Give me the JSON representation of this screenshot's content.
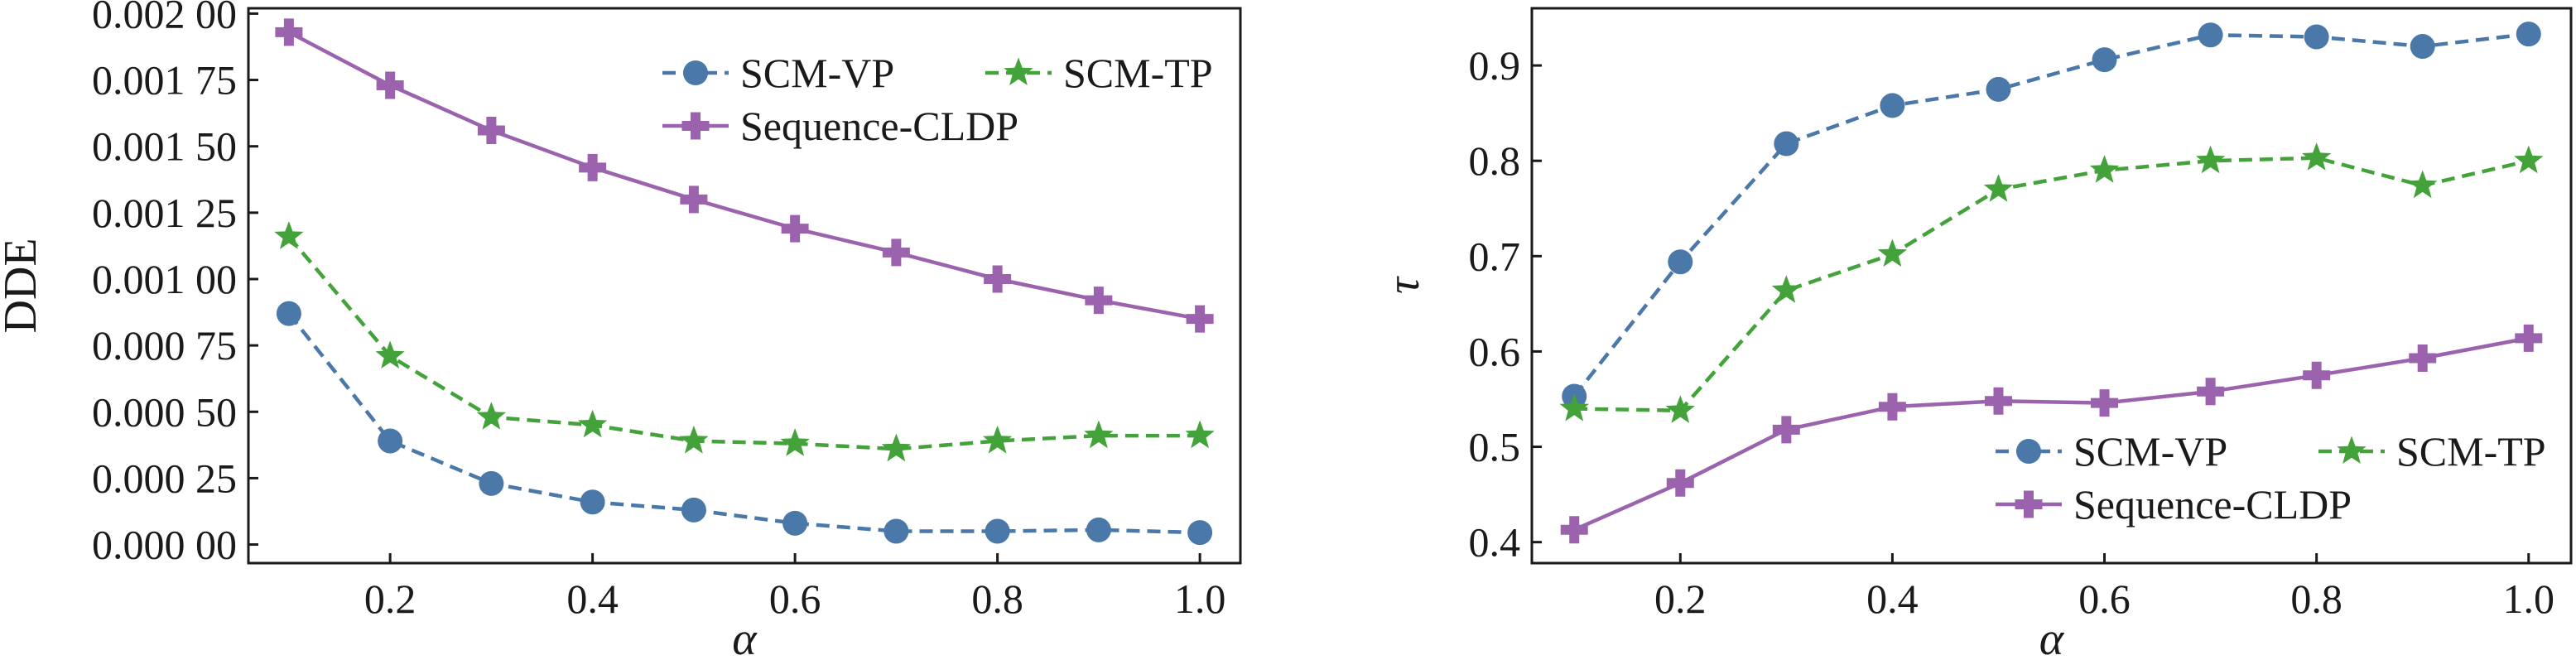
{
  "chart_data": [
    {
      "type": "line",
      "title": "",
      "xlabel": "α",
      "ylabel": "DDE",
      "xlim": [
        0.06,
        1.04
      ],
      "ylim": [
        -7e-05,
        0.00202
      ],
      "xticks": [
        0.2,
        0.4,
        0.6,
        0.8,
        1.0
      ],
      "xtick_labels": [
        "0.2",
        "0.4",
        "0.6",
        "0.8",
        "1.0"
      ],
      "yticks": [
        0,
        0.00025,
        0.0005,
        0.00075,
        0.001,
        0.00125,
        0.0015,
        0.00175,
        0.002
      ],
      "ytick_labels": [
        "0.000 00",
        "0.000 25",
        "0.000 50",
        "0.000 75",
        "0.001 00",
        "0.001 25",
        "0.001 50",
        "0.001 75",
        "0.002 00"
      ],
      "grid": false,
      "legend_position": "top-right",
      "legend_rows": [
        [
          "SCM-VP",
          "SCM-TP"
        ],
        [
          "Sequence-CLDP"
        ]
      ],
      "x": [
        0.1,
        0.2,
        0.3,
        0.4,
        0.5,
        0.6,
        0.7,
        0.8,
        0.9,
        1.0
      ],
      "series": [
        {
          "name": "SCM-VP",
          "color": "#4a78a8",
          "marker": "circle",
          "line": "dashed",
          "values": [
            0.00087,
            0.00039,
            0.00023,
            0.00016,
            0.00013,
            8e-05,
            5e-05,
            5e-05,
            5.5e-05,
            4.5e-05
          ]
        },
        {
          "name": "SCM-TP",
          "color": "#44a23a",
          "marker": "star",
          "line": "dashed",
          "values": [
            0.00116,
            0.00071,
            0.00048,
            0.00045,
            0.00039,
            0.00038,
            0.00036,
            0.00039,
            0.00041,
            0.00041
          ]
        },
        {
          "name": "Sequence-CLDP",
          "color": "#9b63ad",
          "marker": "plus",
          "line": "solid",
          "values": [
            0.00193,
            0.00173,
            0.00156,
            0.00142,
            0.0013,
            0.00119,
            0.0011,
            0.001,
            0.00092,
            0.00085
          ]
        }
      ]
    },
    {
      "type": "line",
      "title": "",
      "xlabel": "α",
      "ylabel": "τ",
      "xlim": [
        0.06,
        1.04
      ],
      "ylim": [
        0.378,
        0.96
      ],
      "xticks": [
        0.2,
        0.4,
        0.6,
        0.8,
        1.0
      ],
      "xtick_labels": [
        "0.2",
        "0.4",
        "0.6",
        "0.8",
        "1.0"
      ],
      "yticks": [
        0.4,
        0.5,
        0.6,
        0.7,
        0.8,
        0.9
      ],
      "ytick_labels": [
        "0.4",
        "0.5",
        "0.6",
        "0.7",
        "0.8",
        "0.9"
      ],
      "grid": false,
      "legend_position": "bottom-right",
      "legend_rows": [
        [
          "SCM-VP",
          "SCM-TP"
        ],
        [
          "Sequence-CLDP"
        ]
      ],
      "x": [
        0.1,
        0.2,
        0.3,
        0.4,
        0.5,
        0.6,
        0.7,
        0.8,
        0.9,
        1.0
      ],
      "series": [
        {
          "name": "SCM-VP",
          "color": "#4a78a8",
          "marker": "circle",
          "line": "dashed",
          "values": [
            0.553,
            0.694,
            0.818,
            0.858,
            0.875,
            0.906,
            0.932,
            0.93,
            0.92,
            0.933
          ]
        },
        {
          "name": "SCM-TP",
          "color": "#44a23a",
          "marker": "star",
          "line": "dashed",
          "values": [
            0.54,
            0.538,
            0.664,
            0.702,
            0.77,
            0.79,
            0.8,
            0.803,
            0.774,
            0.8
          ]
        },
        {
          "name": "Sequence-CLDP",
          "color": "#9b63ad",
          "marker": "plus",
          "line": "solid",
          "values": [
            0.413,
            0.462,
            0.518,
            0.542,
            0.548,
            0.546,
            0.558,
            0.575,
            0.593,
            0.614
          ]
        }
      ]
    }
  ]
}
